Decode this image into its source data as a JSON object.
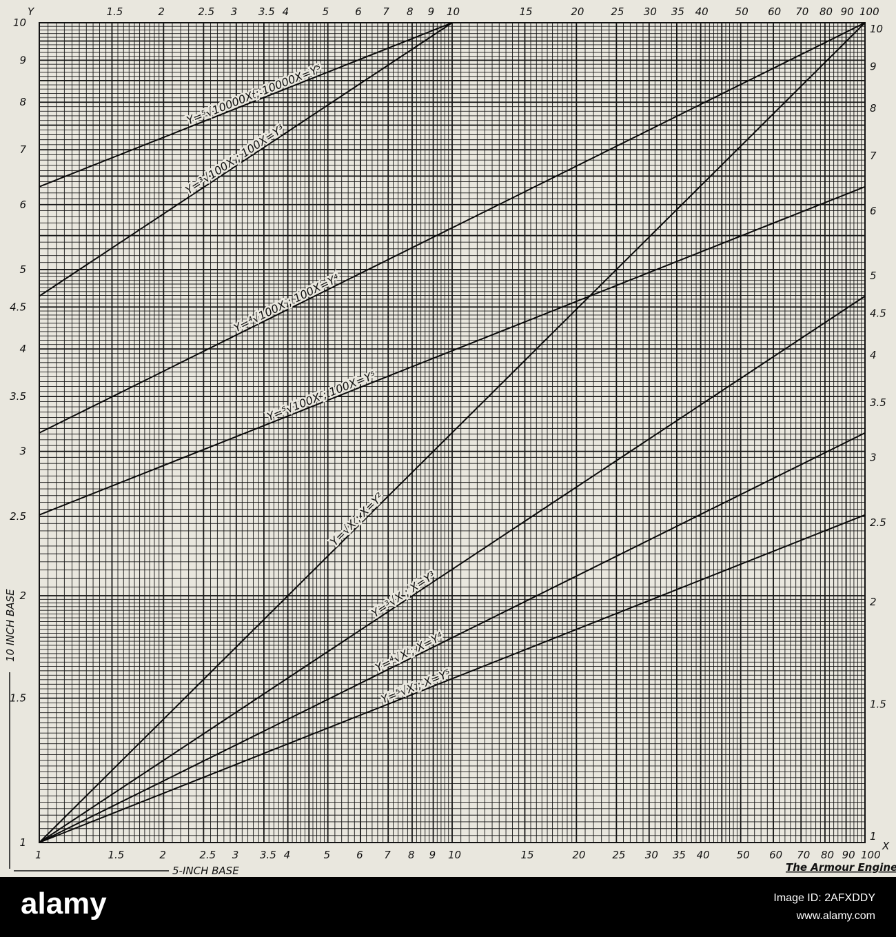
{
  "chart_data": {
    "type": "line",
    "xscale": "log",
    "yscale": "log",
    "xlim": [
      1,
      100
    ],
    "ylim": [
      1,
      10
    ],
    "grid": true,
    "x_axis_letter": "X",
    "y_axis_letter": "Y",
    "x_ticks": [
      "1",
      "1.5",
      "2",
      "2.5",
      "3",
      "3.5",
      "4",
      "5",
      "6",
      "7",
      "8",
      "9",
      "10",
      "15",
      "20",
      "25",
      "30",
      "35",
      "40",
      "50",
      "60",
      "70",
      "80",
      "90",
      "100"
    ],
    "x_tick_values": [
      1,
      1.5,
      2,
      2.5,
      3,
      3.5,
      4,
      5,
      6,
      7,
      8,
      9,
      10,
      15,
      20,
      25,
      30,
      35,
      40,
      50,
      60,
      70,
      80,
      90,
      100
    ],
    "y_ticks": [
      "1",
      "1.5",
      "2",
      "2.5",
      "3",
      "3.5",
      "4",
      "4.5",
      "5",
      "6",
      "7",
      "8",
      "9",
      "10"
    ],
    "y_tick_values": [
      1,
      1.5,
      2,
      2.5,
      3,
      3.5,
      4,
      4.5,
      5,
      6,
      7,
      8,
      9,
      10
    ],
    "xlabel": "5-INCH BASE",
    "ylabel": "10 INCH BASE",
    "credit": "The Armour Engineer",
    "series": [
      {
        "name": "Y=⁵√10000X ; 10000X=Y⁵",
        "x": [
          1,
          10
        ],
        "y": [
          6.31,
          10
        ],
        "label_at": 2.3
      },
      {
        "name": "Y=³√100X ; 100X=Y³",
        "x": [
          1,
          10
        ],
        "y": [
          4.64,
          10
        ],
        "label_at": 2.3
      },
      {
        "name": "Y=⁴√100X ; 100X=Y⁴",
        "x": [
          1,
          100
        ],
        "y": [
          3.16,
          10
        ],
        "label_at": 3.0
      },
      {
        "name": "Y=⁵√100X ; 100X=Y⁵",
        "x": [
          1,
          100
        ],
        "y": [
          2.51,
          6.31
        ],
        "label_at": 3.6
      },
      {
        "name": "Y=√X ; X=Y²",
        "x": [
          1,
          100
        ],
        "y": [
          1,
          10
        ],
        "label_at": 5.2
      },
      {
        "name": "Y=³√X ; X=Y³",
        "x": [
          1,
          100
        ],
        "y": [
          1,
          4.64
        ],
        "label_at": 6.5
      },
      {
        "name": "Y=⁴√X ; X=Y⁴",
        "x": [
          1,
          100
        ],
        "y": [
          1,
          3.16
        ],
        "label_at": 6.6
      },
      {
        "name": "Y=⁵√X ; X=Y⁵",
        "x": [
          1,
          100
        ],
        "y": [
          1,
          2.51
        ],
        "label_at": 6.8
      }
    ]
  },
  "watermark": {
    "logo": "alamy",
    "image_id": "Image ID: 2AFXDDY",
    "site": "www.alamy.com"
  }
}
